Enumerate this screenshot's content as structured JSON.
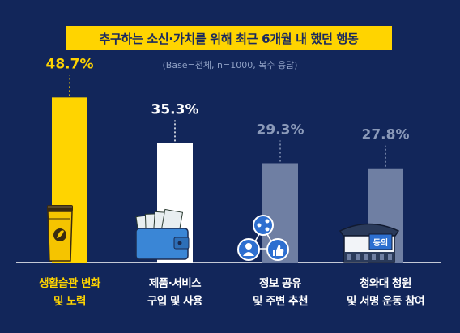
{
  "header": {
    "title": "추구하는 소신·가치를 위해 최근 6개월 내 했던 행동",
    "subtitle": "(Base=전체, n=1000, 복수 응답)"
  },
  "chart_data": {
    "type": "bar",
    "title": "추구하는 소신·가치를 위해 최근 6개월 내 했던 행동",
    "subtitle": "(Base=전체, n=1000, 복수 응답)",
    "categories": [
      [
        "생활습관 변화",
        "및 노력"
      ],
      [
        "제품·서비스",
        "구입 및 사용"
      ],
      [
        "정보 공유",
        "및 주변 추천"
      ],
      [
        "청와대 청원",
        "및 서명 운동 참여"
      ]
    ],
    "values": [
      48.7,
      35.3,
      29.3,
      27.8
    ],
    "value_labels": [
      "48.7%",
      "35.3%",
      "29.3%",
      "27.8%"
    ],
    "unit": "%",
    "ylim": [
      0,
      55
    ],
    "grid": false,
    "icons": [
      "tumbler-icon",
      "wallet-money-icon",
      "social-share-icon",
      "petition-building-icon"
    ],
    "icon_badge": "동의",
    "colors": {
      "bar_highlight": "#ffd400",
      "bar_second": "#ffffff",
      "bar_other": "#6f7fa3",
      "label_highlight": "#ffd400",
      "label_second": "#ffffff",
      "label_other": "#8b9ab9",
      "background": "#12265a"
    }
  }
}
